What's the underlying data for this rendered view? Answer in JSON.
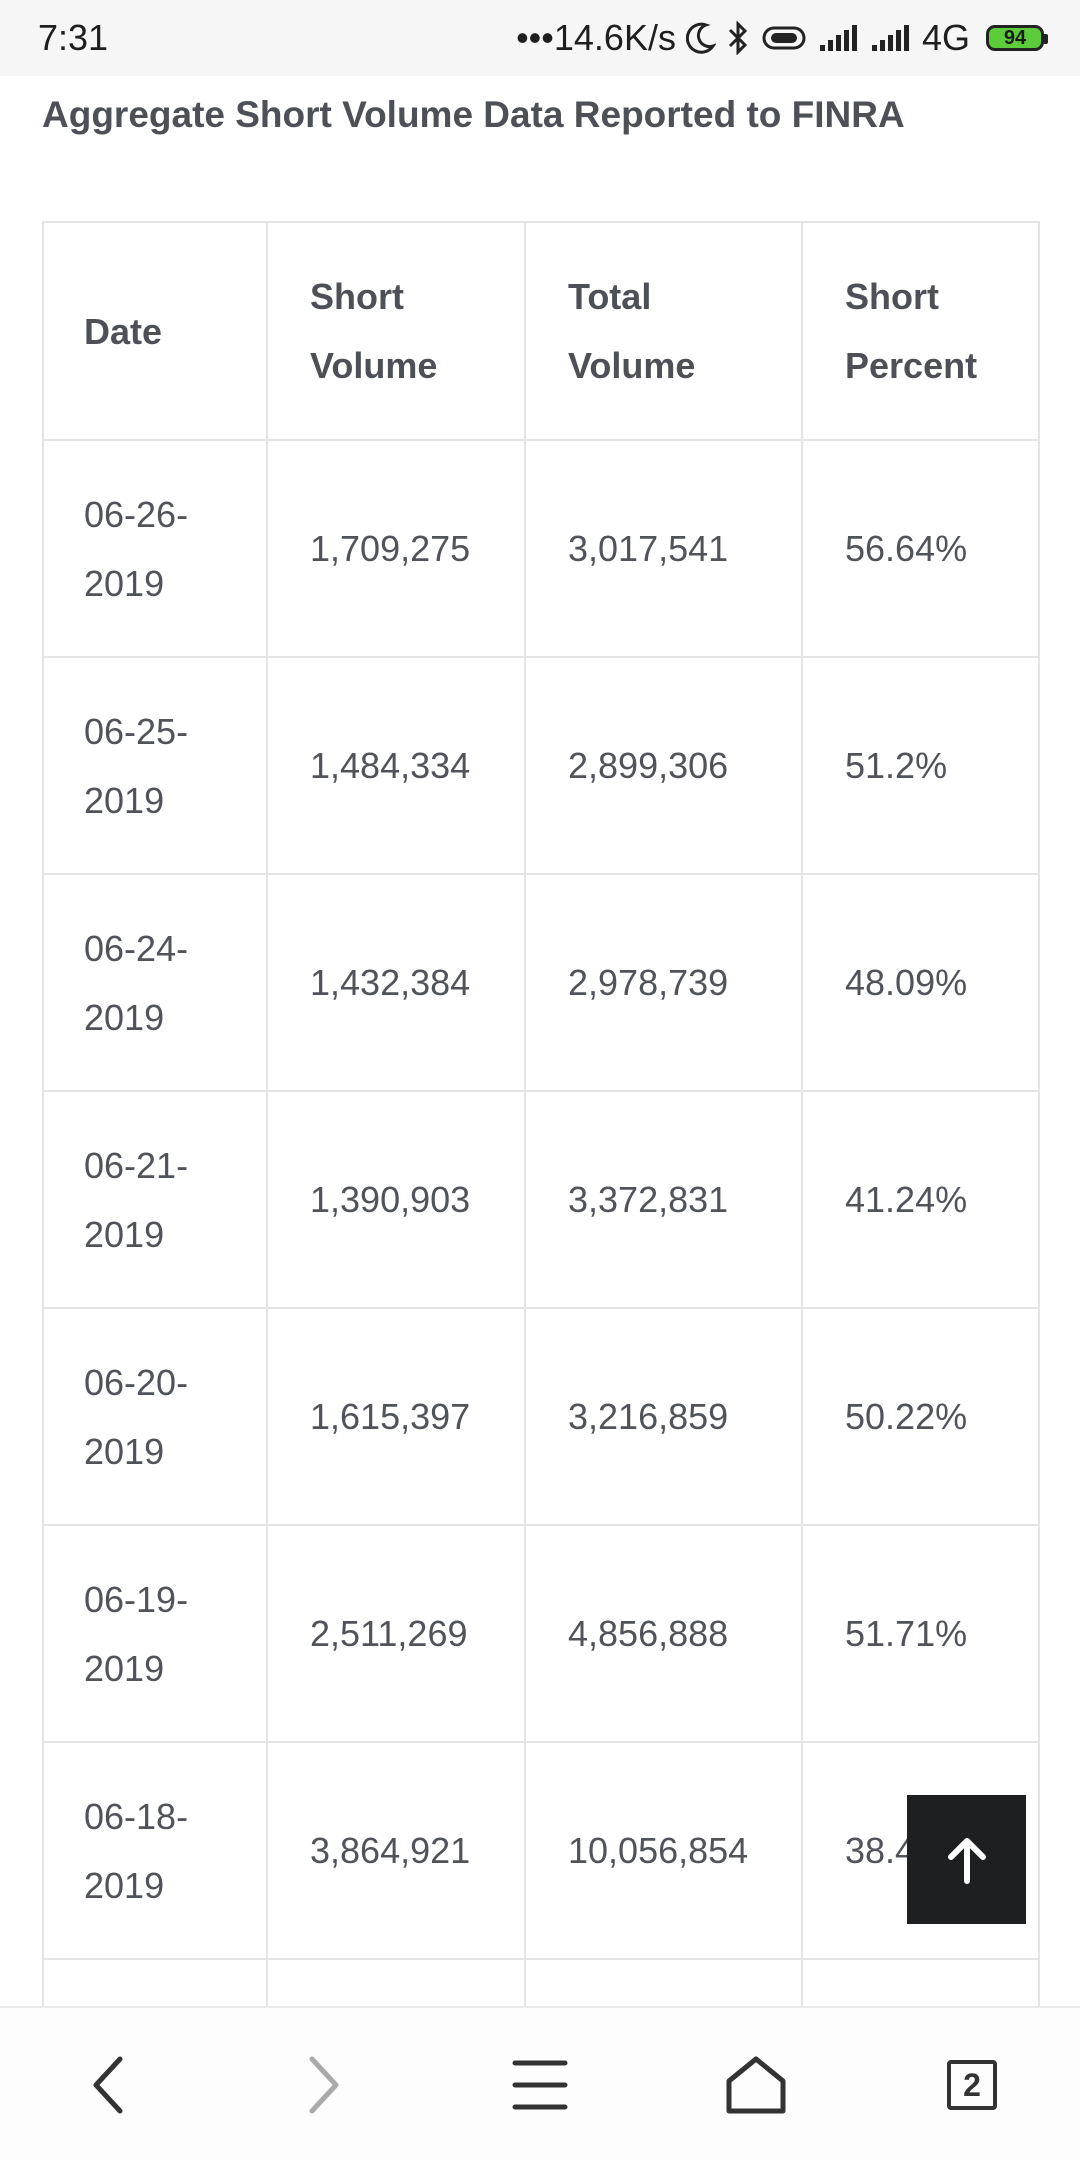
{
  "status_bar": {
    "time": "7:31",
    "net_speed": "•••14.6K/s",
    "network": "4G",
    "battery": "94",
    "icons": [
      "moon-icon",
      "bluetooth-icon",
      "vibrate-icon",
      "signal-icon",
      "signal-icon"
    ]
  },
  "page": {
    "heading": "Aggregate Short Volume Data Reported to FINRA"
  },
  "table": {
    "headers": {
      "date": "Date",
      "short_volume_line1": "Short",
      "short_volume_line2": "Volume",
      "total_volume_line1": "Total",
      "total_volume_line2": "Volume",
      "short_percent_line1": "Short",
      "short_percent_line2": "Percent"
    },
    "rows": [
      {
        "date_a": "06-26-",
        "date_b": "2019",
        "short_volume": "1,709,275",
        "total_volume": "3,017,541",
        "short_percent": "56.64%"
      },
      {
        "date_a": "06-25-",
        "date_b": "2019",
        "short_volume": "1,484,334",
        "total_volume": "2,899,306",
        "short_percent": "51.2%"
      },
      {
        "date_a": "06-24-",
        "date_b": "2019",
        "short_volume": "1,432,384",
        "total_volume": "2,978,739",
        "short_percent": "48.09%"
      },
      {
        "date_a": "06-21-",
        "date_b": "2019",
        "short_volume": "1,390,903",
        "total_volume": "3,372,831",
        "short_percent": "41.24%"
      },
      {
        "date_a": "06-20-",
        "date_b": "2019",
        "short_volume": "1,615,397",
        "total_volume": "3,216,859",
        "short_percent": "50.22%"
      },
      {
        "date_a": "06-19-",
        "date_b": "2019",
        "short_volume": "2,511,269",
        "total_volume": "4,856,888",
        "short_percent": "51.71%"
      },
      {
        "date_a": "06-18-",
        "date_b": "2019",
        "short_volume": "3,864,921",
        "total_volume": "10,056,854",
        "short_percent": "38.4"
      }
    ]
  },
  "back_to_top": {
    "icon": "arrow-up-icon"
  },
  "bottom_nav": {
    "tab_count": "2",
    "icons": [
      "back-arrow-icon",
      "forward-arrow-icon",
      "menu-icon",
      "home-icon",
      "tabs-icon"
    ]
  }
}
